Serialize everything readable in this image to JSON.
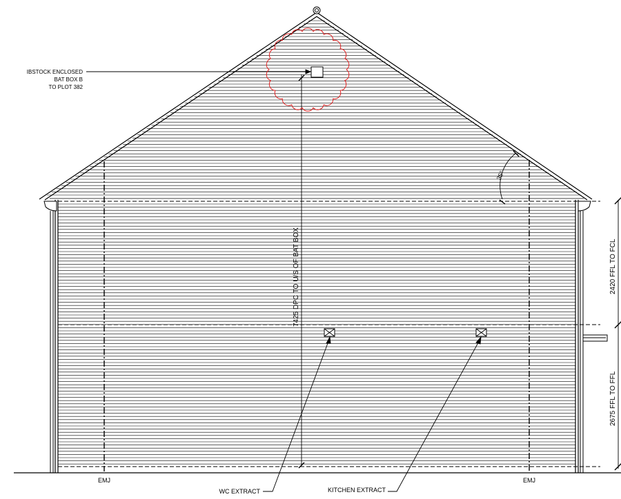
{
  "drawing": {
    "bat_box_label": [
      "IBSTOCK ENCLOSED",
      "BAT BOX B",
      "TO PLOT 382"
    ],
    "bat_box_dimension": "7425 DPC TO U/S OF BAT BOX",
    "roof_pitch": "35°",
    "dim_upper": "2420 FFL TO FCL",
    "dim_lower": "2675 FFL TO FFL",
    "emj_left": "EMJ",
    "emj_right": "EMJ",
    "wc_extract": "WC EXTRACT",
    "kitchen_extract": "KITCHEN EXTRACT",
    "revision_cloud_color": "#e02020",
    "line_color": "#000000"
  }
}
